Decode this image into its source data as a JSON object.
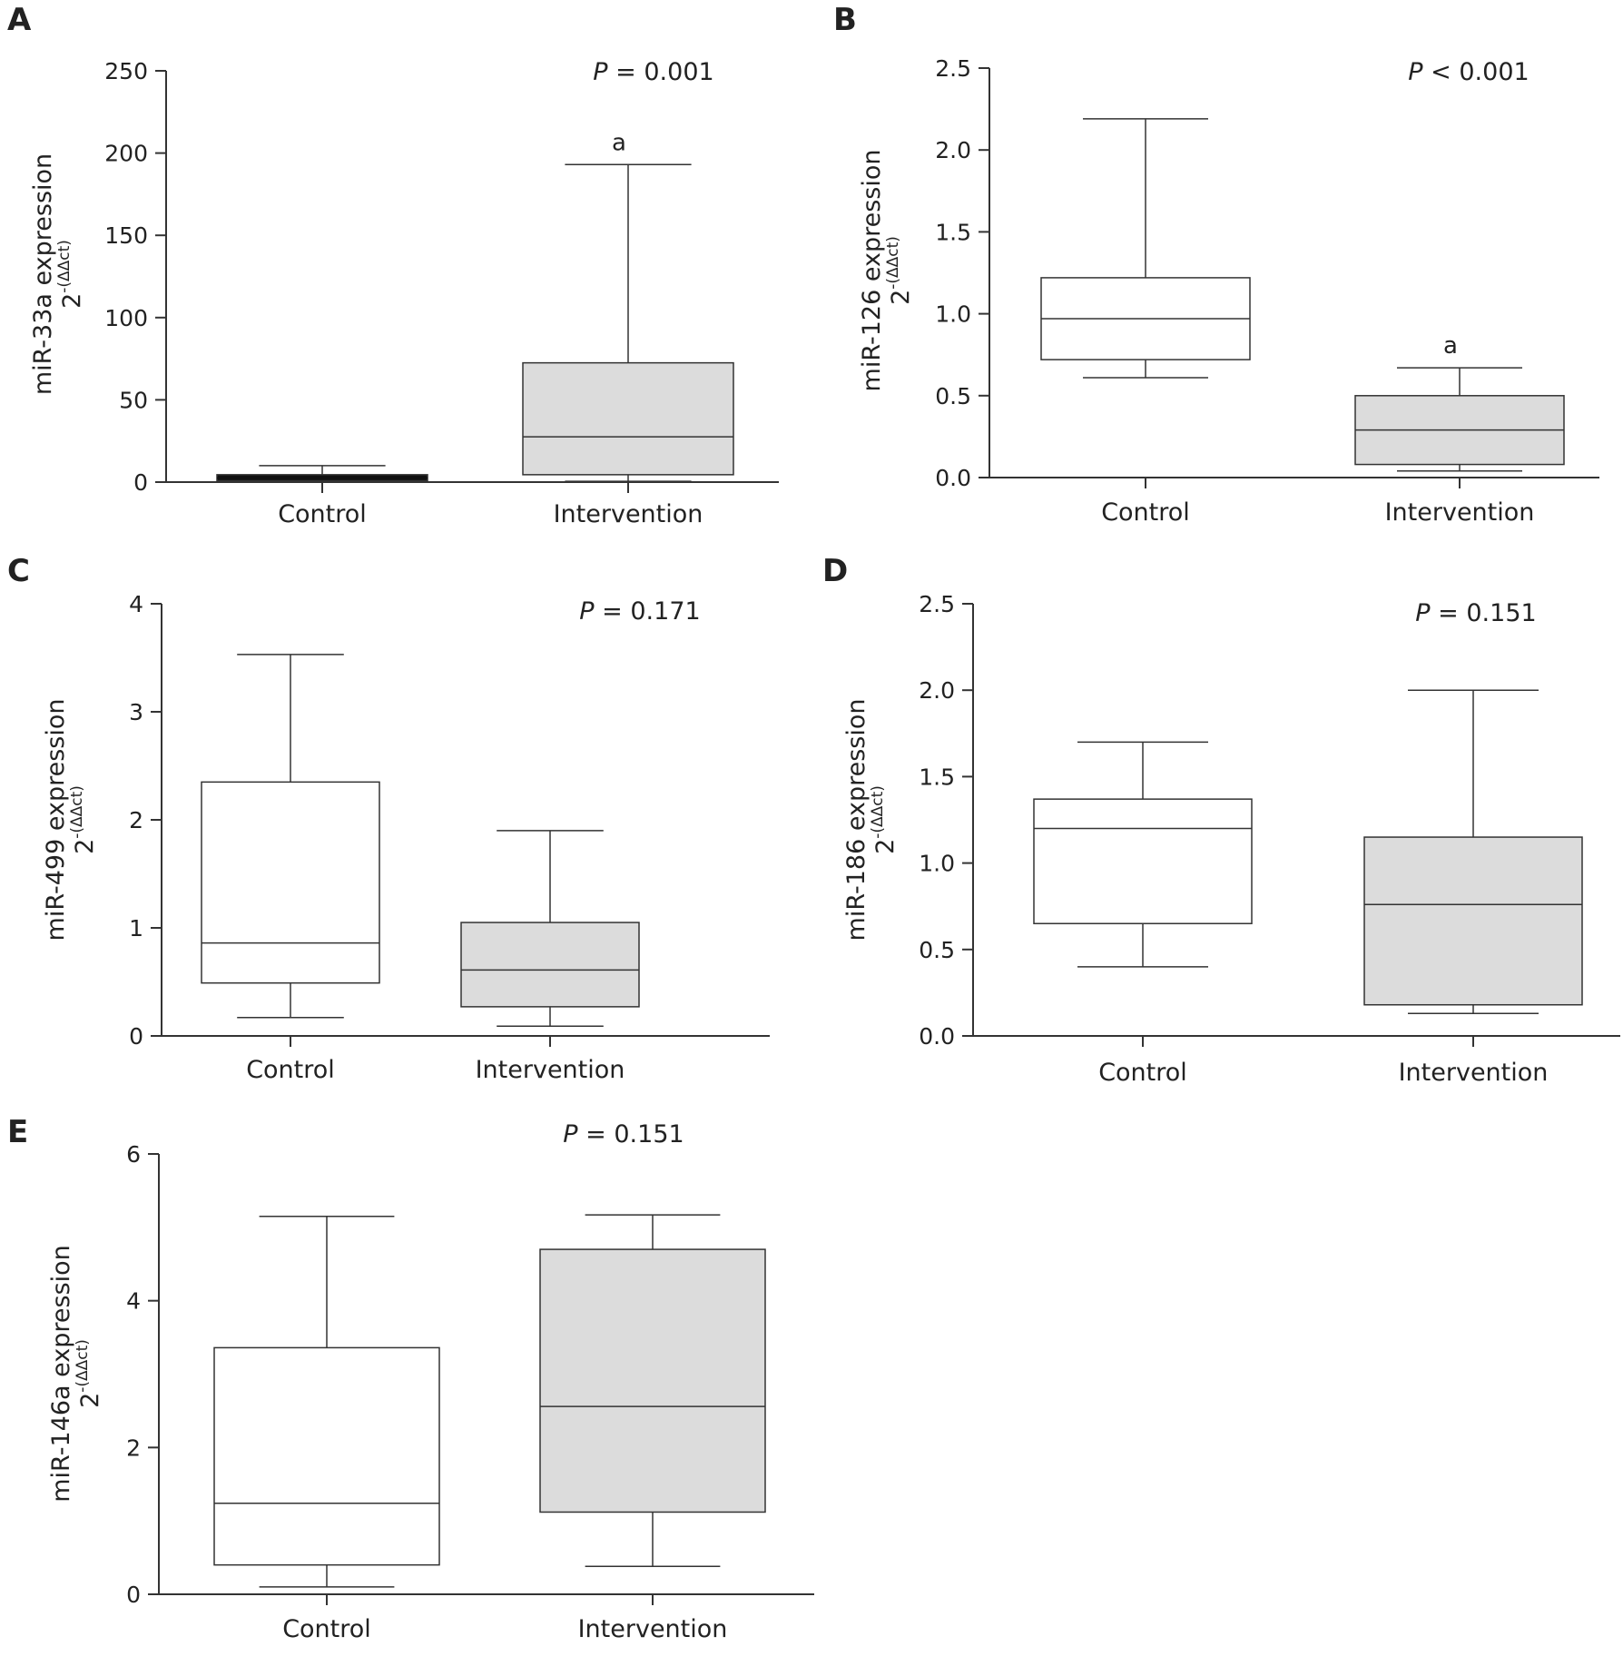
{
  "figure": {
    "panels": [
      "A",
      "B",
      "C",
      "D",
      "E"
    ]
  },
  "chart_data": [
    {
      "panel": "A",
      "type": "box",
      "categories": [
        "Control",
        "Intervention"
      ],
      "ylabel": "miR-33a expression",
      "ylabel_formula": "2",
      "ylabel_formula_sup": "-(ΔΔct)",
      "ylim": [
        0,
        250
      ],
      "yticks": [
        0,
        50,
        100,
        150,
        200,
        250
      ],
      "tick_decimals": 0,
      "p_value": "= 0.001",
      "significance_marks": [
        null,
        "a"
      ],
      "fills": [
        "#111111",
        "#dcdcdc"
      ],
      "boxes": [
        {
          "min": 0,
          "q1": 0.8,
          "median": 2.5,
          "q3": 4.5,
          "max": 10
        },
        {
          "min": 0.5,
          "q1": 4.5,
          "median": 27.5,
          "q3": 72.5,
          "max": 193
        }
      ]
    },
    {
      "panel": "B",
      "type": "box",
      "categories": [
        "Control",
        "Intervention"
      ],
      "ylabel": "miR-126 expression",
      "ylabel_formula": "2",
      "ylabel_formula_sup": "-(ΔΔct)",
      "ylim": [
        0,
        2.5
      ],
      "yticks": [
        0.0,
        0.5,
        1.0,
        1.5,
        2.0,
        2.5
      ],
      "tick_decimals": 1,
      "p_value": "< 0.001",
      "significance_marks": [
        null,
        "a"
      ],
      "fills": [
        "#ffffff",
        "#dcdcdc"
      ],
      "boxes": [
        {
          "min": 0.61,
          "q1": 0.72,
          "median": 0.97,
          "q3": 1.22,
          "max": 2.19
        },
        {
          "min": 0.04,
          "q1": 0.08,
          "median": 0.29,
          "q3": 0.5,
          "max": 0.67
        }
      ]
    },
    {
      "panel": "C",
      "type": "box",
      "categories": [
        "Control",
        "Intervention"
      ],
      "ylabel": "miR-499 expression",
      "ylabel_formula": "2",
      "ylabel_formula_sup": "-(ΔΔct)",
      "ylim": [
        0,
        4
      ],
      "yticks": [
        0,
        1,
        2,
        3,
        4
      ],
      "tick_decimals": 0,
      "p_value": "= 0.171",
      "significance_marks": [
        null,
        null
      ],
      "fills": [
        "#ffffff",
        "#dcdcdc"
      ],
      "boxes": [
        {
          "min": 0.17,
          "q1": 0.49,
          "median": 0.86,
          "q3": 2.35,
          "max": 3.53
        },
        {
          "min": 0.09,
          "q1": 0.27,
          "median": 0.61,
          "q3": 1.05,
          "max": 1.9
        }
      ]
    },
    {
      "panel": "D",
      "type": "box",
      "categories": [
        "Control",
        "Intervention"
      ],
      "ylabel": "miR-186 expression",
      "ylabel_formula": "2",
      "ylabel_formula_sup": "-(ΔΔct)",
      "ylim": [
        0,
        2.5
      ],
      "yticks": [
        0.0,
        0.5,
        1.0,
        1.5,
        2.0,
        2.5
      ],
      "tick_decimals": 1,
      "p_value": "= 0.151",
      "significance_marks": [
        null,
        null
      ],
      "fills": [
        "#ffffff",
        "#dcdcdc"
      ],
      "boxes": [
        {
          "min": 0.4,
          "q1": 0.65,
          "median": 1.2,
          "q3": 1.37,
          "max": 1.7
        },
        {
          "min": 0.13,
          "q1": 0.18,
          "median": 0.76,
          "q3": 1.15,
          "max": 2.0
        }
      ]
    },
    {
      "panel": "E",
      "type": "box",
      "categories": [
        "Control",
        "Intervention"
      ],
      "ylabel": "miR-146a expression",
      "ylabel_formula": "2",
      "ylabel_formula_sup": "-(ΔΔct)",
      "ylim": [
        0,
        6
      ],
      "yticks": [
        0,
        2,
        4,
        6
      ],
      "tick_decimals": 0,
      "p_value": "= 0.151",
      "significance_marks": [
        null,
        null
      ],
      "fills": [
        "#ffffff",
        "#dcdcdc"
      ],
      "boxes": [
        {
          "min": 0.1,
          "q1": 0.4,
          "median": 1.24,
          "q3": 3.36,
          "max": 5.15
        },
        {
          "min": 0.38,
          "q1": 1.12,
          "median": 2.56,
          "q3": 4.7,
          "max": 5.17
        }
      ]
    }
  ]
}
